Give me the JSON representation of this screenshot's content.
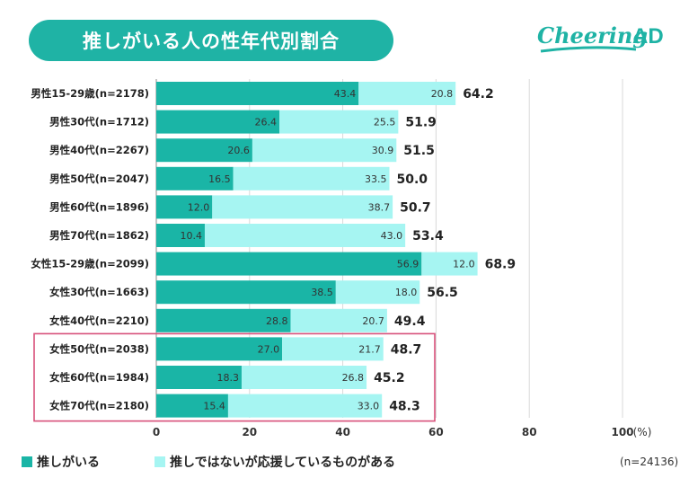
{
  "header": {
    "title": "推しがいる人の性年代別割合",
    "brand_main": "Cheering",
    "brand_suffix": "AD"
  },
  "colors": {
    "series1": "#1ab5a6",
    "series2": "#a6f5f2",
    "brand": "#1fb3a5",
    "highlight_box": "#d8507a"
  },
  "chart_data": {
    "type": "bar",
    "orientation": "horizontal",
    "stacked": true,
    "categories": [
      "男性15-29歳(n=2178)",
      "男性30代(n=1712)",
      "男性40代(n=2267)",
      "男性50代(n=2047)",
      "男性60代(n=1896)",
      "男性70代(n=1862)",
      "女性15-29歳(n=2099)",
      "女性30代(n=1663)",
      "女性40代(n=2210)",
      "女性50代(n=2038)",
      "女性60代(n=1984)",
      "女性70代(n=2180)"
    ],
    "series": [
      {
        "name": "推しがいる",
        "values": [
          43.4,
          26.4,
          20.6,
          16.5,
          12.0,
          10.4,
          56.9,
          38.5,
          28.8,
          27.0,
          18.3,
          15.4
        ]
      },
      {
        "name": "推しではないが応援しているものがある",
        "values": [
          20.8,
          25.5,
          30.9,
          33.5,
          38.7,
          43.0,
          12.0,
          18.0,
          20.7,
          21.7,
          26.8,
          33.0
        ]
      }
    ],
    "value_labels": [
      [
        "43.4",
        "26.4",
        "20.6",
        "16.5",
        "12.0",
        "10.4",
        "56.9",
        "38.5",
        "28.8",
        "27.0",
        "18.3",
        "15.4"
      ],
      [
        "20.8",
        "25.5",
        "30.9",
        "33.5",
        "38.7",
        "43.0",
        "12.0",
        "18.0",
        "20.7",
        "21.7",
        "26.8",
        "33.0"
      ]
    ],
    "totals": [
      "64.2",
      "51.9",
      "51.5",
      "50.0",
      "50.7",
      "53.4",
      "68.9",
      "56.5",
      "49.4",
      "48.7",
      "45.2",
      "48.3"
    ],
    "x_ticks": [
      "0",
      "20",
      "40",
      "60",
      "80",
      "100"
    ],
    "xlim": [
      0,
      100
    ],
    "x_unit": "(%)",
    "total_n": "(n=24136)",
    "highlighted_categories": [
      "女性50代(n=2038)",
      "女性60代(n=1984)",
      "女性70代(n=2180)"
    ],
    "grid": true,
    "legend_position": "bottom-left"
  }
}
